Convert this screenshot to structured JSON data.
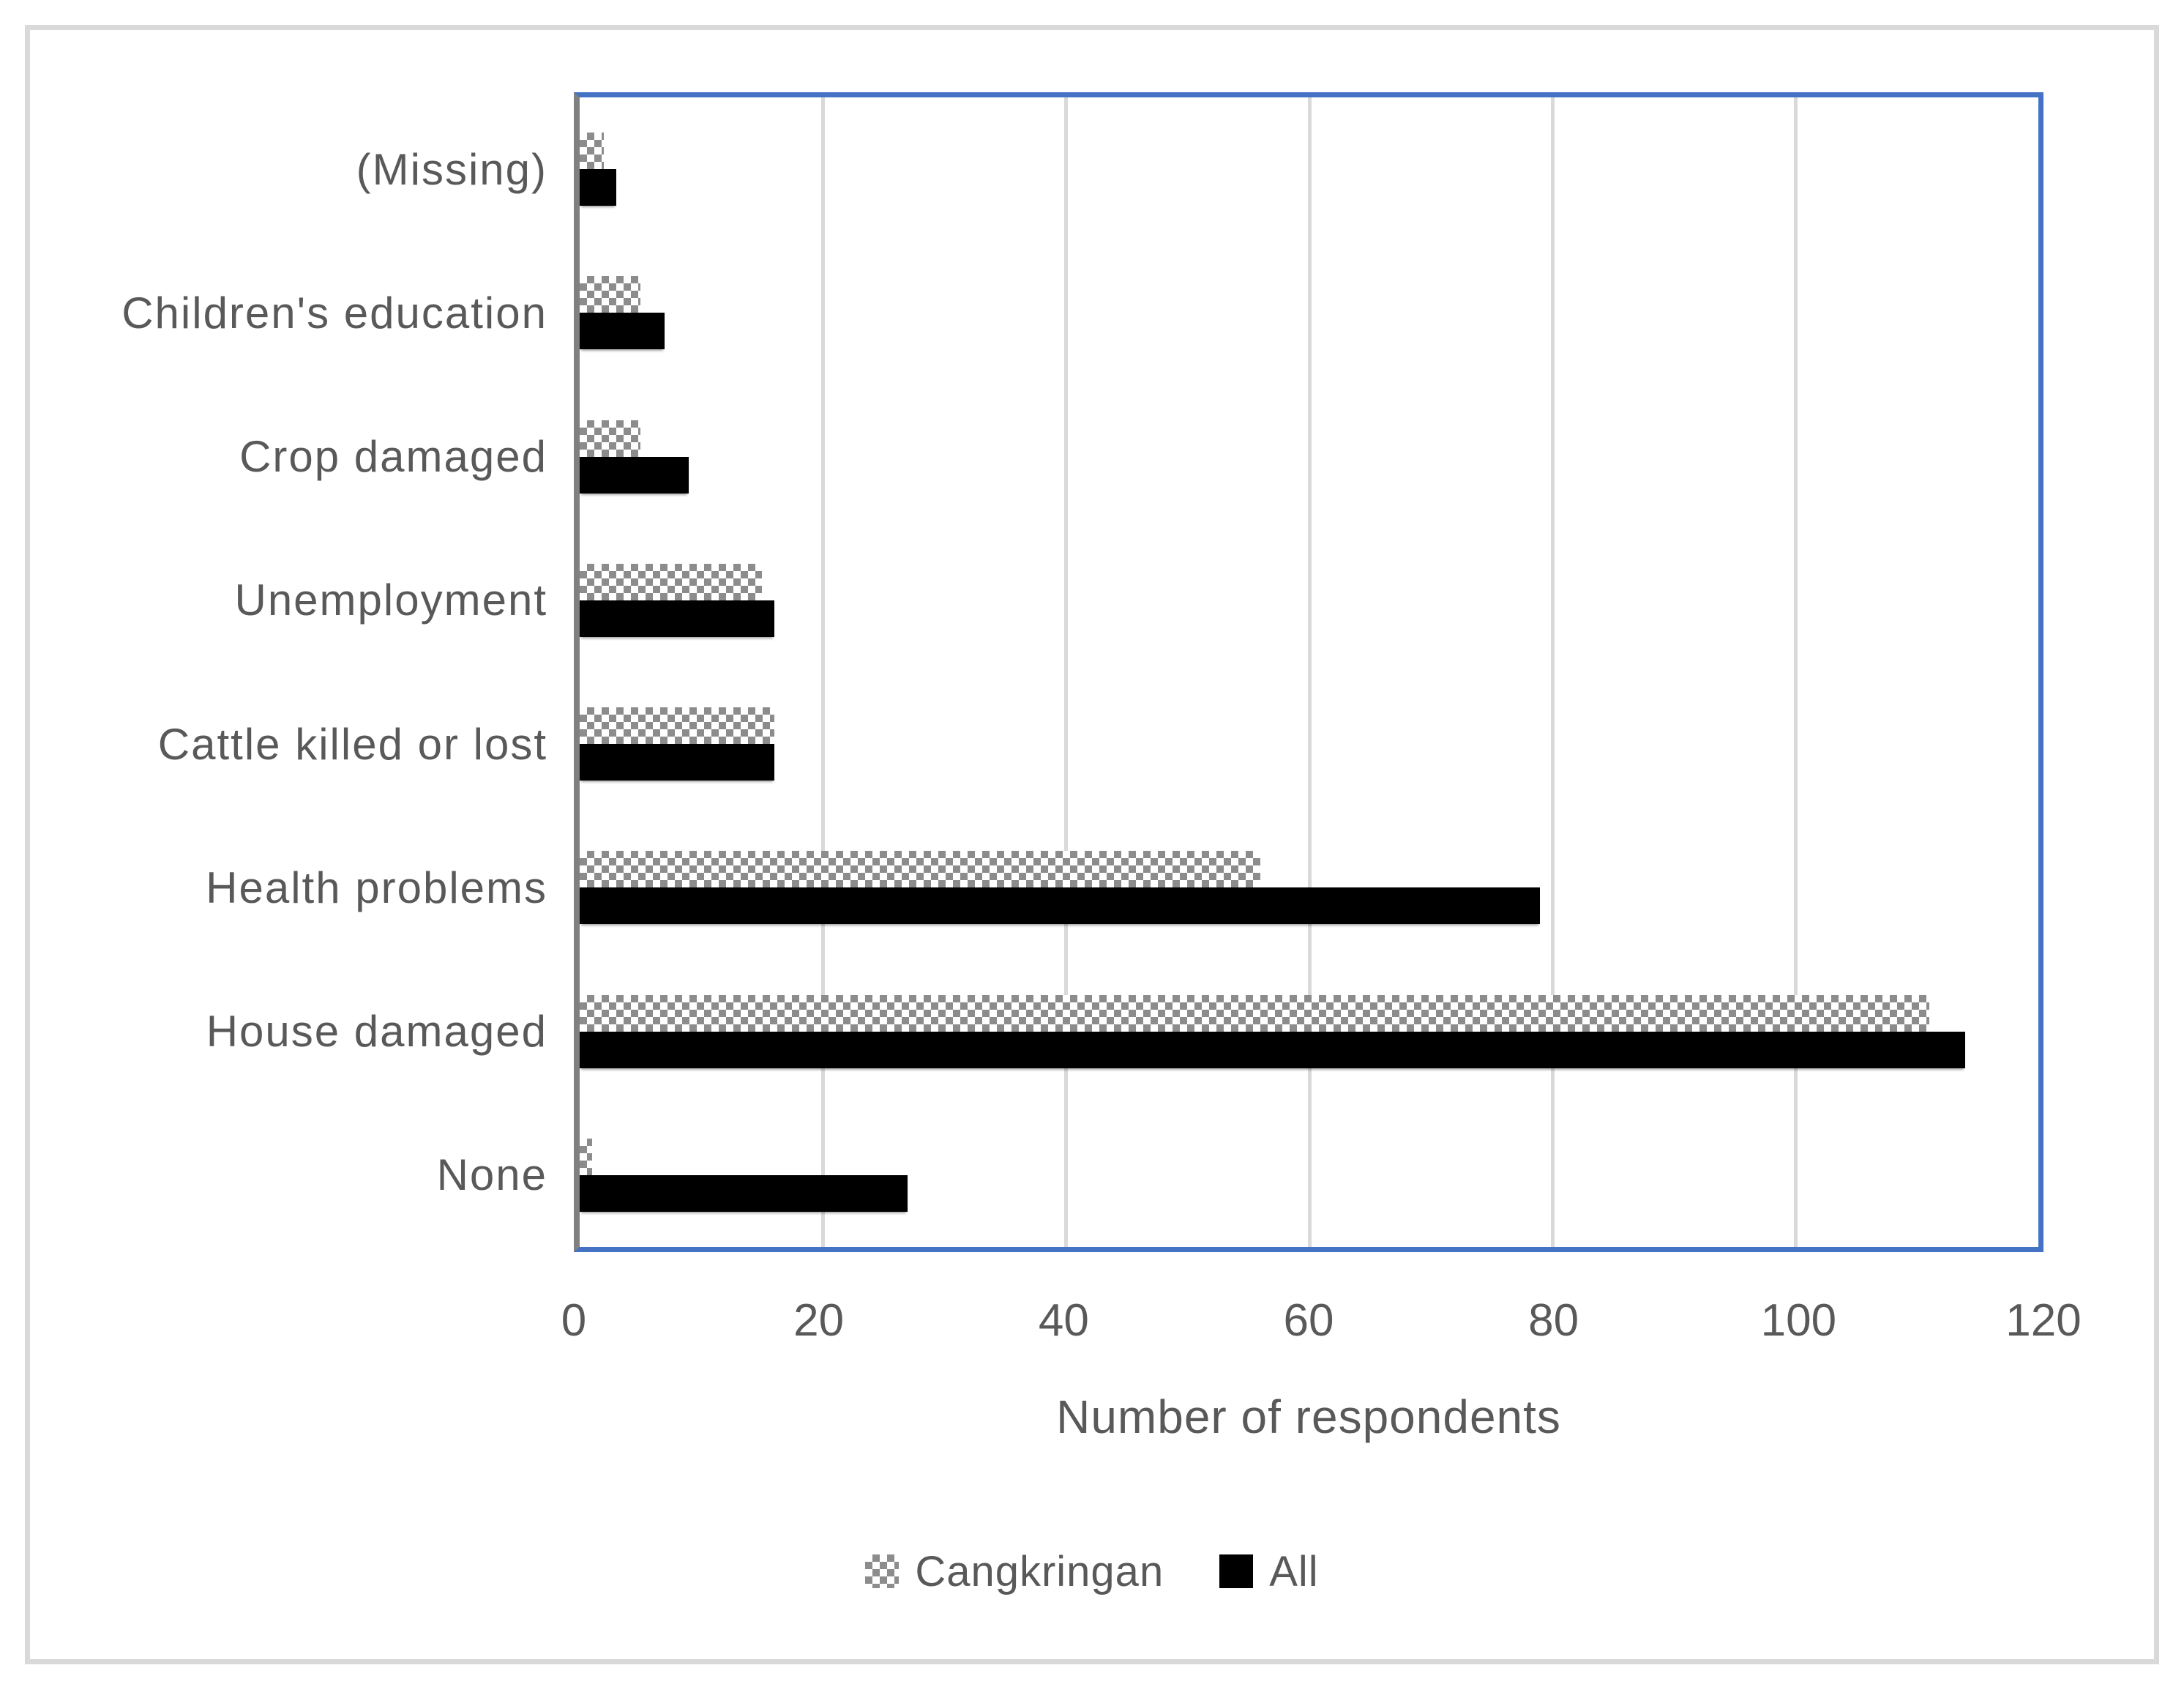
{
  "chart_data": {
    "type": "bar",
    "orientation": "horizontal",
    "title": "",
    "xlabel": "Number of respondents",
    "ylabel": "",
    "categories": [
      "(Missing)",
      "Children's education",
      "Crop damaged",
      "Unemployment",
      "Cattle killed or lost",
      "Health problems",
      "House damaged",
      "None"
    ],
    "series": [
      {
        "name": "Cangkringan",
        "fill": "checker-pattern",
        "color": "#8c8c8c",
        "values": [
          2,
          5,
          5,
          15,
          16,
          56,
          111,
          1
        ]
      },
      {
        "name": "All",
        "fill": "solid",
        "color": "#000000",
        "values": [
          3,
          7,
          9,
          16,
          16,
          79,
          114,
          27
        ]
      }
    ],
    "x_axis": {
      "min": 0,
      "max": 120,
      "tick_interval": 20,
      "ticks": [
        0,
        20,
        40,
        60,
        80,
        100,
        120
      ]
    },
    "grid": "vertical-major",
    "legend_position": "bottom",
    "colors": {
      "plot_border": "#4472c4",
      "axis_line": "#808080",
      "gridline": "#d9d9d9",
      "figure_border": "#d9d9d9",
      "text": "#595959",
      "background": "#ffffff",
      "pattern_color": "#8c8c8c",
      "bar_solid": "#000000"
    }
  },
  "legend": {
    "items": [
      {
        "label": "Cangkringan"
      },
      {
        "label": "All"
      }
    ]
  }
}
